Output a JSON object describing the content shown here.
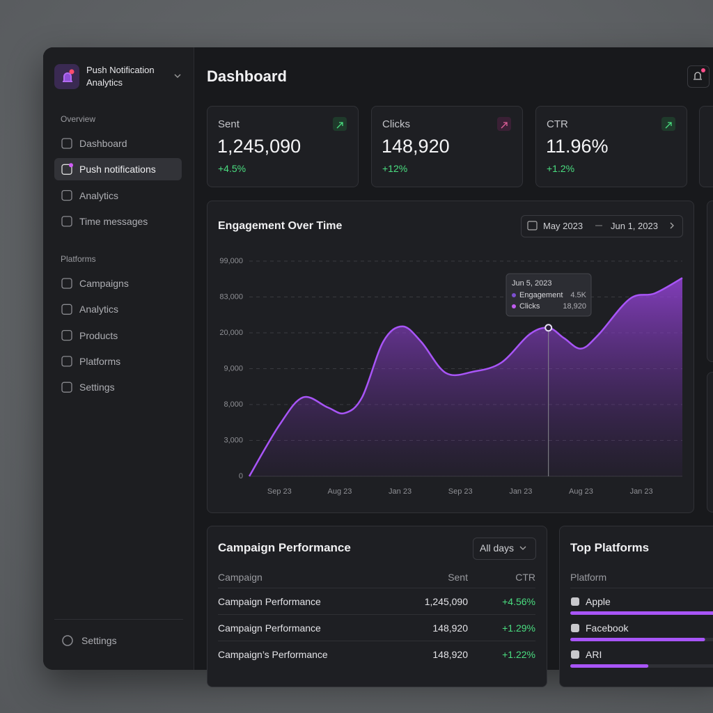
{
  "app": {
    "title_line1": "Push Notification",
    "title_line2": "Analytics"
  },
  "sidebar": {
    "sections": [
      {
        "label": "Overview",
        "items": [
          "Dashboard",
          "Push notifications",
          "Analytics",
          "Time messages"
        ]
      },
      {
        "label": "Platforms",
        "items": [
          "Campaigns",
          "Analytics",
          "Products",
          "Platforms",
          "Settings"
        ]
      }
    ],
    "footer": "Settings"
  },
  "header": {
    "title": "Dashboard"
  },
  "stats": [
    {
      "label": "Sent",
      "value": "1,245,090",
      "change": "+4.5%"
    },
    {
      "label": "Clicks",
      "value": "148,920",
      "change": "+12%"
    },
    {
      "label": "CTR",
      "value": "11.96%",
      "change": "+1.2%"
    }
  ],
  "chart_data": {
    "type": "area",
    "title": "Engagement Over Time",
    "date_range": {
      "from": "May 2023",
      "to": "Jun 1, 2023"
    },
    "x": [
      -0.5,
      0.0,
      0.39,
      0.8,
      1.08,
      1.37,
      1.72,
      2.04,
      2.35,
      2.76,
      3.22,
      3.68,
      4.14,
      4.46,
      4.72,
      5.0,
      5.29,
      5.81,
      6.22,
      6.68
    ],
    "series": [
      {
        "name": "Engagement",
        "color": "#a855f7",
        "values": [
          0,
          1.43,
          2.2,
          1.92,
          1.76,
          2.2,
          3.75,
          4.18,
          3.75,
          2.88,
          2.92,
          3.17,
          3.95,
          4.14,
          3.85,
          3.56,
          3.95,
          4.95,
          5.1,
          5.53
        ]
      }
    ],
    "xlim": [
      -0.5,
      6.68
    ],
    "xticks": [
      {
        "value": 0,
        "label": "Sep 23"
      },
      {
        "value": 1,
        "label": "Aug 23"
      },
      {
        "value": 2,
        "label": "Jan 23"
      },
      {
        "value": 3,
        "label": "Sep 23"
      },
      {
        "value": 4,
        "label": "Jan 23"
      },
      {
        "value": 5,
        "label": "Aug 23"
      },
      {
        "value": 6,
        "label": "Jan 23"
      }
    ],
    "ylim": [
      0,
      6
    ],
    "yticks": [
      {
        "value": 0,
        "label": "0"
      },
      {
        "value": 1,
        "label": "3,000"
      },
      {
        "value": 2,
        "label": "8,000"
      },
      {
        "value": 3,
        "label": "9,000"
      },
      {
        "value": 4,
        "label": "20,000"
      },
      {
        "value": 5,
        "label": "83,000"
      },
      {
        "value": 6,
        "label": "99,000"
      }
    ],
    "grid": true,
    "tooltip": {
      "date": "Jun 5, 2023",
      "rows": [
        {
          "label": "Engagement",
          "value": "4.5K"
        },
        {
          "label": "Clicks",
          "value": "18,920"
        }
      ]
    }
  },
  "campaigns": {
    "title": "Campaign Performance",
    "filter": "All days",
    "columns": [
      "Campaign",
      "Sent",
      "CTR"
    ],
    "rows": [
      [
        "Campaign Performance",
        "1,245,090",
        "+4.56%"
      ],
      [
        "Campaign Performance",
        "148,920",
        "+1.29%"
      ],
      [
        "Campaign’s Performance",
        "148,920",
        "+1.22%"
      ]
    ]
  },
  "top_platforms": {
    "title": "Top Platforms",
    "column": "Platform",
    "rows": [
      {
        "name": "Apple",
        "share": 100
      },
      {
        "name": "Facebook",
        "share": 88
      },
      {
        "name": "ARI",
        "share": 51
      }
    ]
  }
}
